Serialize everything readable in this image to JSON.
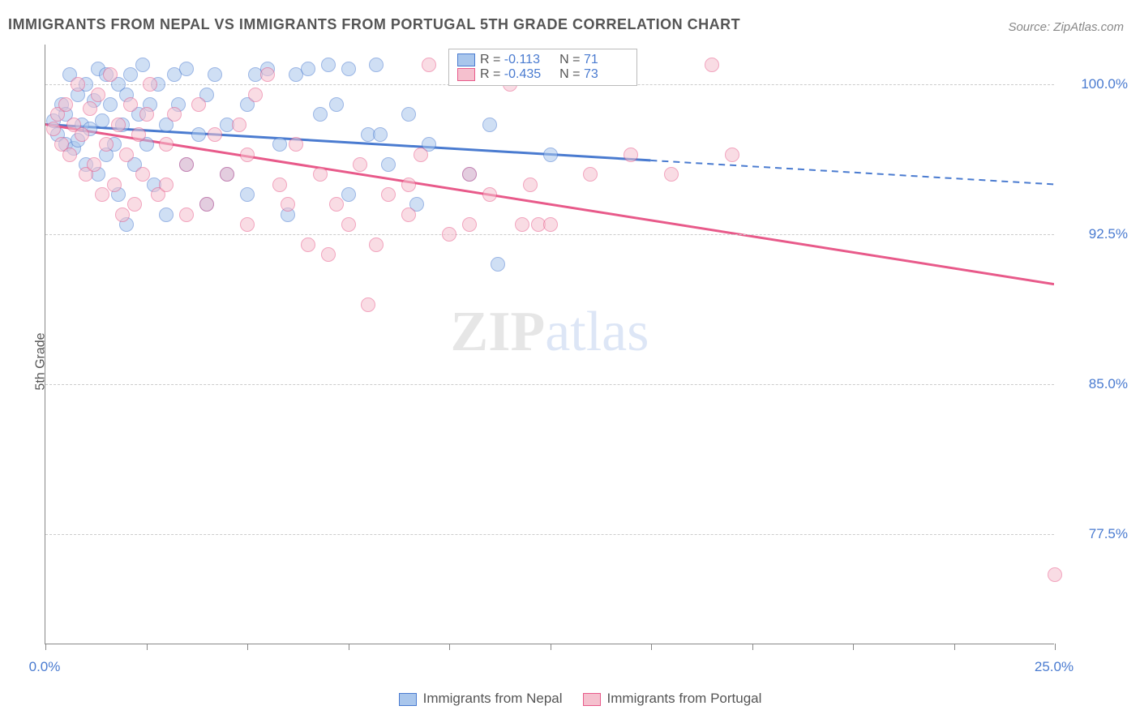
{
  "title": "IMMIGRANTS FROM NEPAL VS IMMIGRANTS FROM PORTUGAL 5TH GRADE CORRELATION CHART",
  "source": "Source: ZipAtlas.com",
  "y_axis_label": "5th Grade",
  "watermark": {
    "part1": "ZIP",
    "part2": "atlas"
  },
  "chart": {
    "type": "scatter",
    "xlim": [
      0,
      25
    ],
    "ylim": [
      72,
      102
    ],
    "x_ticks": [
      0,
      2.5,
      5,
      7.5,
      10,
      12.5,
      15,
      17.5,
      20,
      22.5,
      25
    ],
    "x_tick_labels": {
      "0": "0.0%",
      "25": "25.0%"
    },
    "y_grid": [
      77.5,
      85.0,
      92.5,
      100.0
    ],
    "y_tick_labels": [
      "77.5%",
      "85.0%",
      "92.5%",
      "100.0%"
    ],
    "background_color": "#ffffff",
    "grid_color": "#cccccc",
    "series": [
      {
        "id": "nepal",
        "label": "Immigrants from Nepal",
        "fill_color": "#a9c6ec",
        "stroke_color": "#4a7bd0",
        "r_value": "-0.113",
        "n_value": "71",
        "trend": {
          "x1": 0,
          "y1": 98.0,
          "x2": 15,
          "y2": 96.2,
          "solid_end_x": 15,
          "dash_end_x": 25,
          "dash_end_y": 95.0
        },
        "points": [
          [
            0.2,
            98.2
          ],
          [
            0.3,
            97.5
          ],
          [
            0.4,
            99.0
          ],
          [
            0.5,
            97.0
          ],
          [
            0.5,
            98.5
          ],
          [
            0.6,
            100.5
          ],
          [
            0.7,
            96.8
          ],
          [
            0.8,
            99.5
          ],
          [
            0.8,
            97.2
          ],
          [
            0.9,
            98.0
          ],
          [
            1.0,
            100.0
          ],
          [
            1.0,
            96.0
          ],
          [
            1.1,
            97.8
          ],
          [
            1.2,
            99.2
          ],
          [
            1.3,
            100.8
          ],
          [
            1.3,
            95.5
          ],
          [
            1.4,
            98.2
          ],
          [
            1.5,
            100.5
          ],
          [
            1.5,
            96.5
          ],
          [
            1.6,
            99.0
          ],
          [
            1.7,
            97.0
          ],
          [
            1.8,
            100.0
          ],
          [
            1.8,
            94.5
          ],
          [
            1.9,
            98.0
          ],
          [
            2.0,
            99.5
          ],
          [
            2.0,
            93.0
          ],
          [
            2.1,
            100.5
          ],
          [
            2.2,
            96.0
          ],
          [
            2.3,
            98.5
          ],
          [
            2.4,
            101.0
          ],
          [
            2.5,
            97.0
          ],
          [
            2.6,
            99.0
          ],
          [
            2.7,
            95.0
          ],
          [
            2.8,
            100.0
          ],
          [
            3.0,
            98.0
          ],
          [
            3.0,
            93.5
          ],
          [
            3.2,
            100.5
          ],
          [
            3.3,
            99.0
          ],
          [
            3.5,
            96.0
          ],
          [
            3.5,
            100.8
          ],
          [
            3.8,
            97.5
          ],
          [
            4.0,
            99.5
          ],
          [
            4.0,
            94.0
          ],
          [
            4.2,
            100.5
          ],
          [
            4.5,
            98.0
          ],
          [
            4.5,
            95.5
          ],
          [
            5.0,
            99.0
          ],
          [
            5.0,
            94.5
          ],
          [
            5.2,
            100.5
          ],
          [
            5.5,
            100.8
          ],
          [
            5.8,
            97.0
          ],
          [
            6.0,
            93.5
          ],
          [
            6.2,
            100.5
          ],
          [
            6.5,
            100.8
          ],
          [
            6.8,
            98.5
          ],
          [
            7.0,
            101.0
          ],
          [
            7.2,
            99.0
          ],
          [
            7.5,
            100.8
          ],
          [
            7.5,
            94.5
          ],
          [
            8.0,
            97.5
          ],
          [
            8.2,
            101.0
          ],
          [
            8.3,
            97.5
          ],
          [
            8.5,
            96.0
          ],
          [
            9.0,
            98.5
          ],
          [
            9.2,
            94.0
          ],
          [
            9.5,
            97.0
          ],
          [
            10.5,
            95.5
          ],
          [
            11.0,
            98.0
          ],
          [
            11.2,
            91.0
          ],
          [
            12.5,
            96.5
          ],
          [
            13.0,
            100.5
          ]
        ]
      },
      {
        "id": "portugal",
        "label": "Immigrants from Portugal",
        "fill_color": "#f5c0ce",
        "stroke_color": "#e85a8a",
        "r_value": "-0.435",
        "n_value": "73",
        "trend": {
          "x1": 0,
          "y1": 98.0,
          "x2": 25,
          "y2": 90.0,
          "solid_end_x": 25
        },
        "points": [
          [
            0.2,
            97.8
          ],
          [
            0.3,
            98.5
          ],
          [
            0.4,
            97.0
          ],
          [
            0.5,
            99.0
          ],
          [
            0.6,
            96.5
          ],
          [
            0.7,
            98.0
          ],
          [
            0.8,
            100.0
          ],
          [
            0.9,
            97.5
          ],
          [
            1.0,
            95.5
          ],
          [
            1.1,
            98.8
          ],
          [
            1.2,
            96.0
          ],
          [
            1.3,
            99.5
          ],
          [
            1.4,
            94.5
          ],
          [
            1.5,
            97.0
          ],
          [
            1.6,
            100.5
          ],
          [
            1.7,
            95.0
          ],
          [
            1.8,
            98.0
          ],
          [
            1.9,
            93.5
          ],
          [
            2.0,
            96.5
          ],
          [
            2.1,
            99.0
          ],
          [
            2.2,
            94.0
          ],
          [
            2.3,
            97.5
          ],
          [
            2.4,
            95.5
          ],
          [
            2.5,
            98.5
          ],
          [
            2.6,
            100.0
          ],
          [
            2.8,
            94.5
          ],
          [
            3.0,
            97.0
          ],
          [
            3.0,
            95.0
          ],
          [
            3.2,
            98.5
          ],
          [
            3.5,
            93.5
          ],
          [
            3.5,
            96.0
          ],
          [
            3.8,
            99.0
          ],
          [
            4.0,
            94.0
          ],
          [
            4.2,
            97.5
          ],
          [
            4.5,
            95.5
          ],
          [
            4.8,
            98.0
          ],
          [
            5.0,
            93.0
          ],
          [
            5.0,
            96.5
          ],
          [
            5.2,
            99.5
          ],
          [
            5.5,
            100.5
          ],
          [
            5.8,
            95.0
          ],
          [
            6.0,
            94.0
          ],
          [
            6.2,
            97.0
          ],
          [
            6.5,
            92.0
          ],
          [
            6.8,
            95.5
          ],
          [
            7.0,
            91.5
          ],
          [
            7.2,
            94.0
          ],
          [
            7.5,
            93.0
          ],
          [
            7.8,
            96.0
          ],
          [
            8.0,
            89.0
          ],
          [
            8.2,
            92.0
          ],
          [
            8.5,
            94.5
          ],
          [
            9.0,
            95.0
          ],
          [
            9.0,
            93.5
          ],
          [
            9.3,
            96.5
          ],
          [
            9.5,
            101.0
          ],
          [
            10.0,
            92.5
          ],
          [
            10.5,
            93.0
          ],
          [
            10.5,
            95.5
          ],
          [
            11.0,
            94.5
          ],
          [
            11.5,
            100.0
          ],
          [
            11.8,
            93.0
          ],
          [
            12.0,
            95.0
          ],
          [
            12.2,
            93.0
          ],
          [
            12.5,
            93.0
          ],
          [
            13.0,
            100.5
          ],
          [
            13.5,
            95.5
          ],
          [
            14.0,
            100.5
          ],
          [
            14.5,
            96.5
          ],
          [
            15.5,
            95.5
          ],
          [
            16.5,
            101.0
          ],
          [
            17.0,
            96.5
          ],
          [
            25.0,
            75.5
          ]
        ]
      }
    ]
  },
  "legend_top": {
    "r_label": "R =",
    "n_label": "N ="
  }
}
